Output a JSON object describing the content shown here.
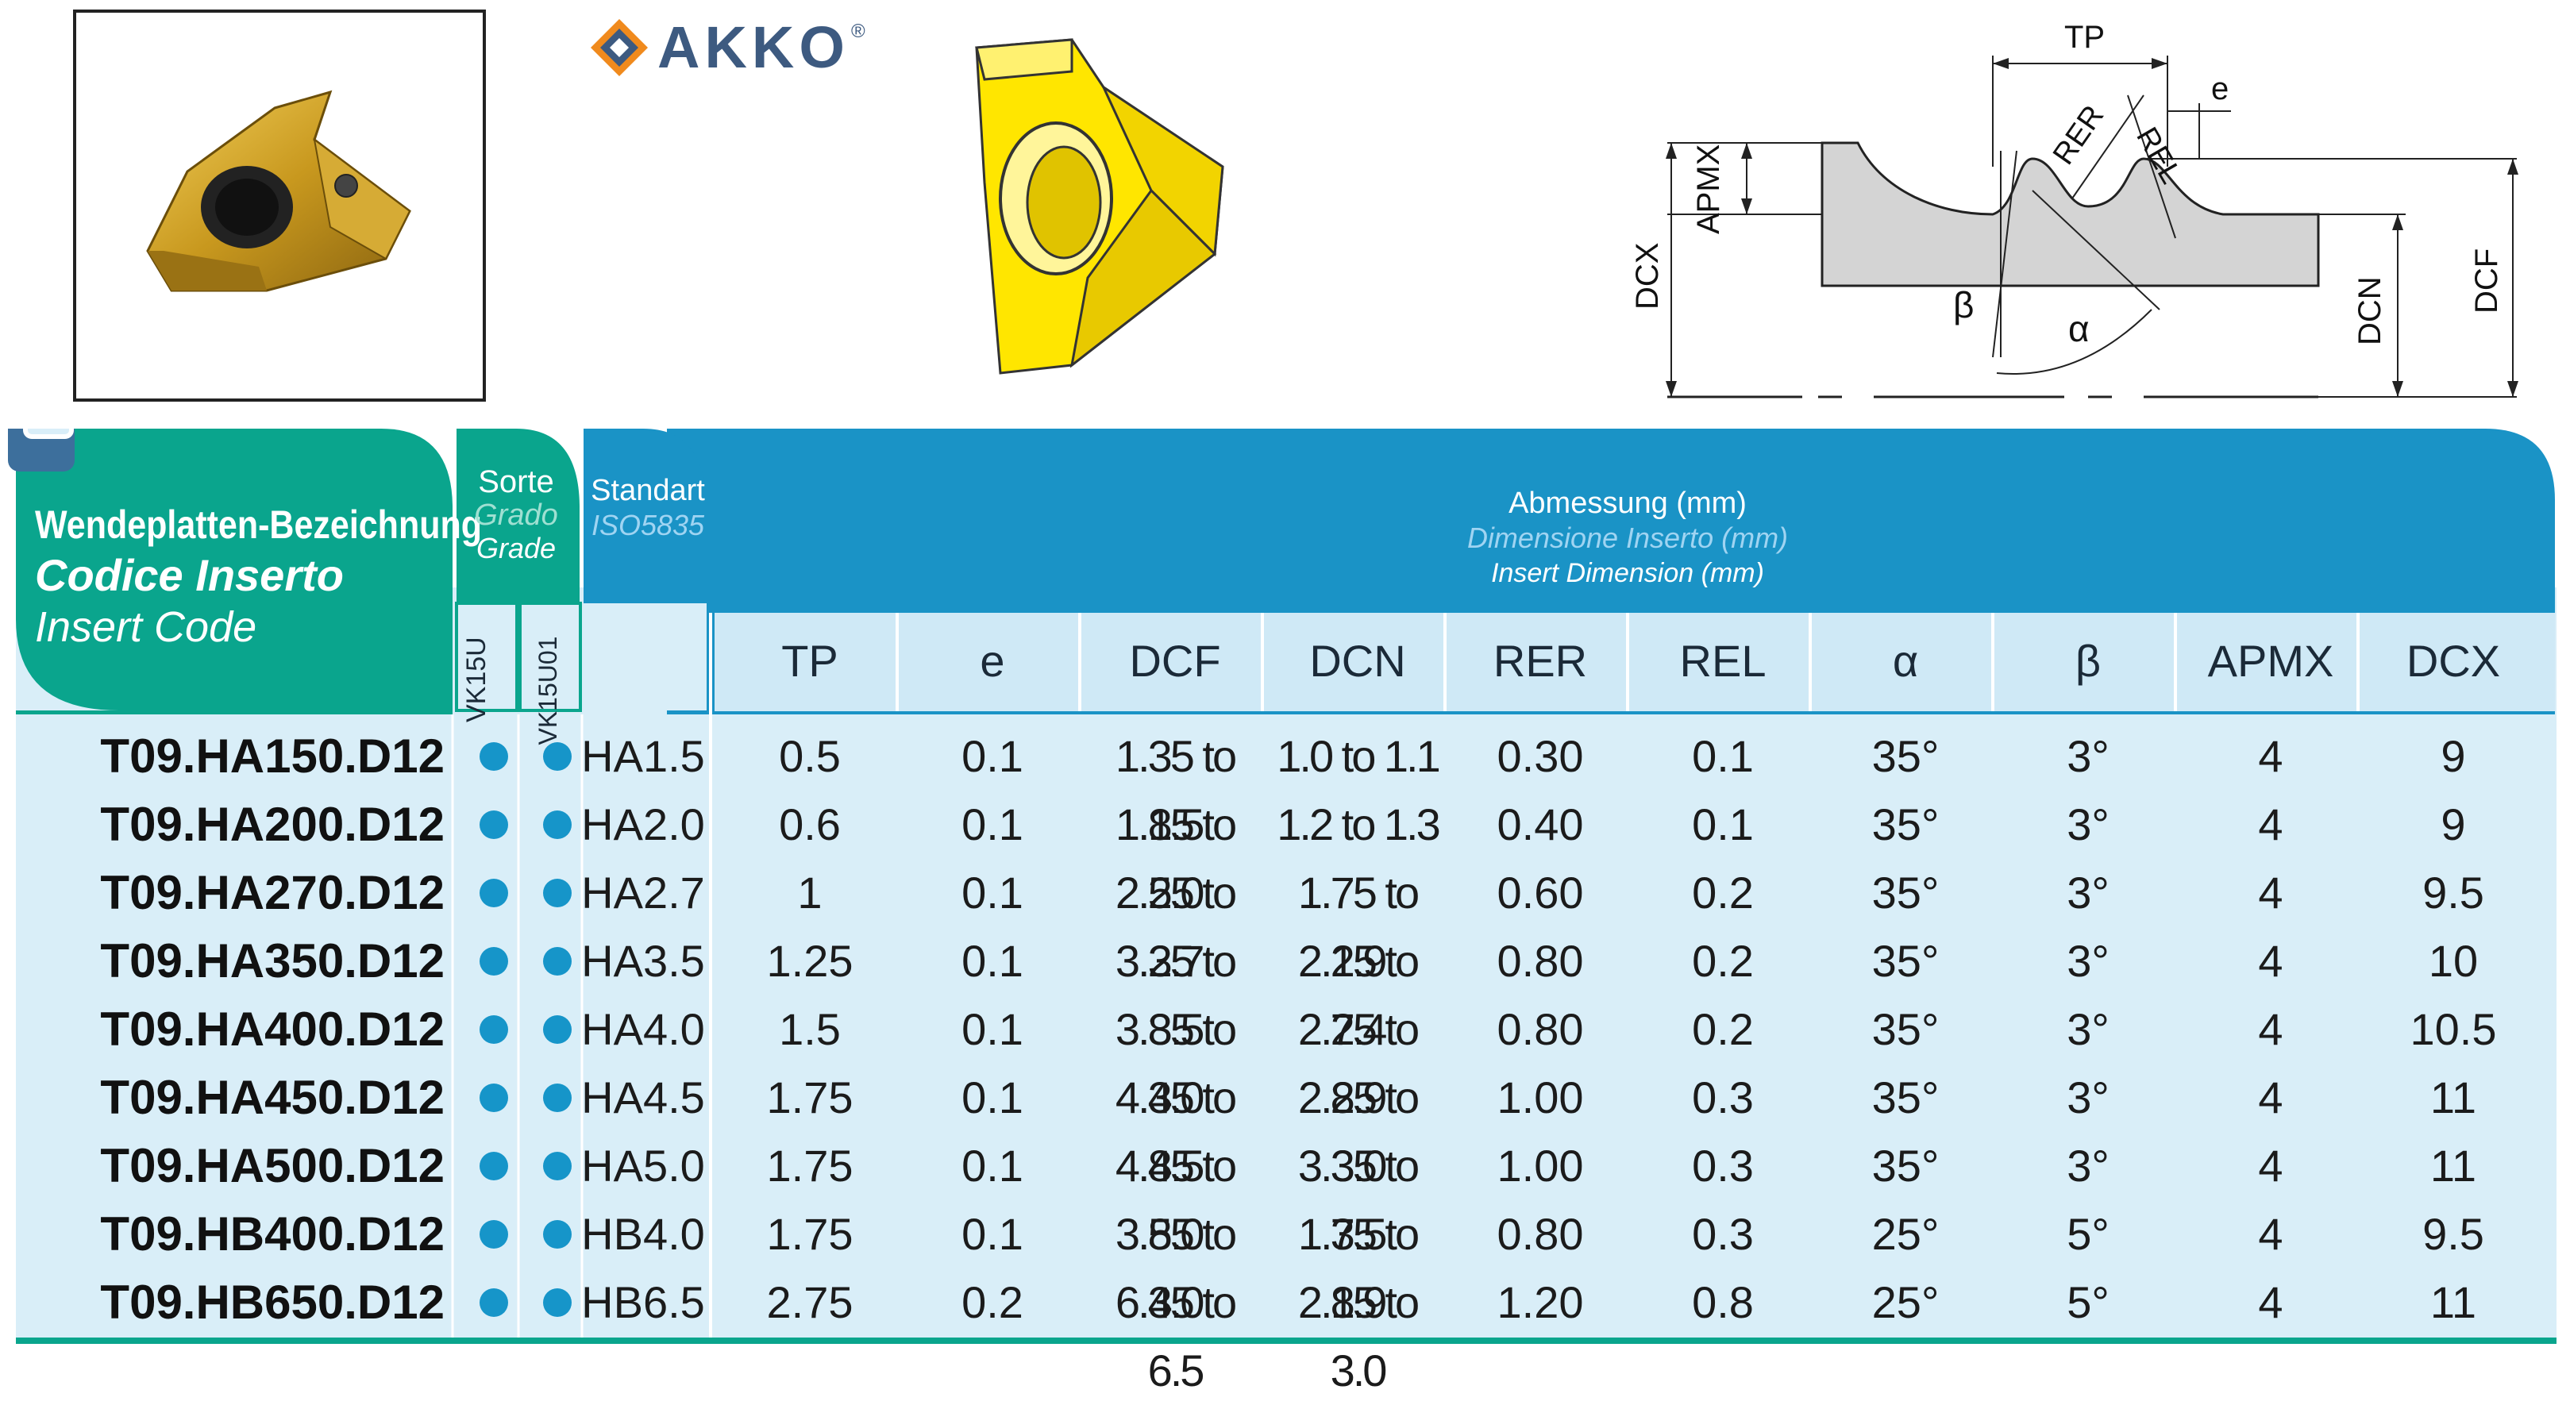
{
  "brand": {
    "name": "AKKO",
    "registered": "®"
  },
  "drawing": {
    "labels": {
      "tp": "TP",
      "e": "e",
      "rer": "RER",
      "rel": "REL",
      "apmx": "APMX",
      "dcx": "DCX",
      "dcn": "DCN",
      "dcf": "DCF",
      "alpha": "α",
      "beta": "β"
    }
  },
  "table": {
    "code_header": {
      "de": "Wendeplatten-Bezeichnung",
      "it": "Codice Inserto",
      "en": "Insert Code"
    },
    "grade_header": {
      "de": "Sorte",
      "it": "Grado",
      "en": "Grade"
    },
    "grades": [
      "VK15U",
      "VK15U01"
    ],
    "standard_header": {
      "de": "Standart",
      "iso": "ISO5835"
    },
    "dimension_header": {
      "de": "Abmessung (mm)",
      "it": "Dimensione Inserto (mm)",
      "en": "Insert Dimension (mm)"
    },
    "columns": [
      "TP",
      "e",
      "DCF",
      "DCN",
      "RER",
      "REL",
      "α",
      "β",
      "APMX",
      "DCX"
    ],
    "rows": [
      {
        "code": "T09.HA150.D12",
        "std": "HA1.5",
        "tp": "0.5",
        "e": "0.1",
        "dcf": "1.35 to 1.5",
        "dcn": "1.0 to 1.1",
        "rer": "0.30",
        "rel": "0.1",
        "alpha": "35°",
        "beta": "3°",
        "apmx": "4",
        "dcx": "9"
      },
      {
        "code": "T09.HA200.D12",
        "std": "HA2.0",
        "tp": "0.6",
        "e": "0.1",
        "dcf": "1.85 to 2.0",
        "dcn": "1.2 to 1.3",
        "rer": "0.40",
        "rel": "0.1",
        "alpha": "35°",
        "beta": "3°",
        "apmx": "4",
        "dcx": "9"
      },
      {
        "code": "T09.HA270.D12",
        "std": "HA2.7",
        "tp": "1",
        "e": "0.1",
        "dcf": "2.55 to 2.7",
        "dcn": "1.75 to 1.9",
        "rer": "0.60",
        "rel": "0.2",
        "alpha": "35°",
        "beta": "3°",
        "apmx": "4",
        "dcx": "9.5"
      },
      {
        "code": "T09.HA350.D12",
        "std": "HA3.5",
        "tp": "1.25",
        "e": "0.1",
        "dcf": "3.35 to 3.5",
        "dcn": "2.25 to 2.4",
        "rer": "0.80",
        "rel": "0.2",
        "alpha": "35°",
        "beta": "3°",
        "apmx": "4",
        "dcx": "10"
      },
      {
        "code": "T09.HA400.D12",
        "std": "HA4.0",
        "tp": "1.5",
        "e": "0.1",
        "dcf": "3.85 to 4.0",
        "dcn": "2.75 to 2.9",
        "rer": "0.80",
        "rel": "0.2",
        "alpha": "35°",
        "beta": "3°",
        "apmx": "4",
        "dcx": "10.5"
      },
      {
        "code": "T09.HA450.D12",
        "std": "HA4.5",
        "tp": "1.75",
        "e": "0.1",
        "dcf": "4.35 to 4.5",
        "dcn": "2.85 to 3.0",
        "rer": "1.00",
        "rel": "0.3",
        "alpha": "35°",
        "beta": "3°",
        "apmx": "4",
        "dcx": "11"
      },
      {
        "code": "T09.HA500.D12",
        "std": "HA5.0",
        "tp": "1.75",
        "e": "0.1",
        "dcf": "4.85 to 5.0",
        "dcn": "3.35 to 3.5",
        "rer": "1.00",
        "rel": "0.3",
        "alpha": "35°",
        "beta": "3°",
        "apmx": "4",
        "dcx": "11"
      },
      {
        "code": "T09.HB400.D12",
        "std": "HB4.0",
        "tp": "1.75",
        "e": "0.1",
        "dcf": "3.85 to 4.0",
        "dcn": "1.75 to 1.9",
        "rer": "0.80",
        "rel": "0.3",
        "alpha": "25°",
        "beta": "5°",
        "apmx": "4",
        "dcx": "9.5"
      },
      {
        "code": "T09.HB650.D12",
        "std": "HB6.5",
        "tp": "2.75",
        "e": "0.2",
        "dcf": "6.35 to 6.5",
        "dcn": "2.85 to 3.0",
        "rer": "1.20",
        "rel": "0.8",
        "alpha": "25°",
        "beta": "5°",
        "apmx": "4",
        "dcx": "11"
      }
    ]
  },
  "colors": {
    "teal": "#0aa58d",
    "blue": "#1a93c6",
    "light": "#d9eef8",
    "dot": "#1695c9"
  }
}
